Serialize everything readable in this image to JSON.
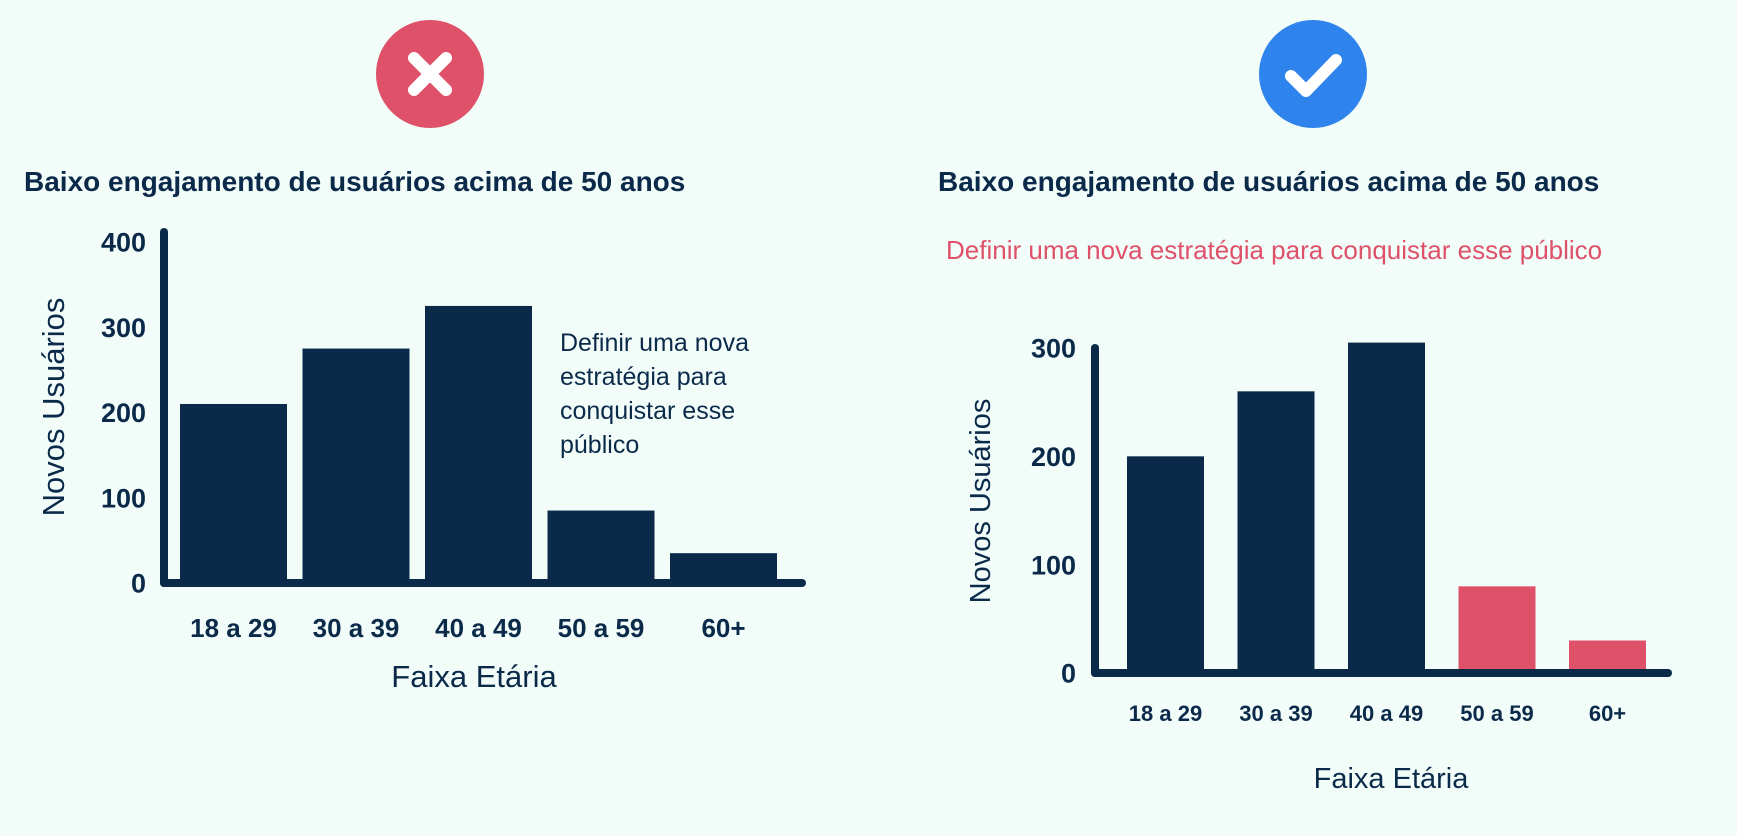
{
  "colors": {
    "background": "#f2fdfa",
    "navy": "#0b2a4a",
    "accent": "#de5169",
    "bad_badge": "#de5169",
    "good_badge": "#2e84ec"
  },
  "left": {
    "badge_icon": "x-icon",
    "title": "Baixo engajamento de usuários acima de 50 anos",
    "note_lines": [
      "Definir uma nova",
      "estratégia para",
      "conquistar esse",
      "público"
    ]
  },
  "right": {
    "badge_icon": "check-icon",
    "title": "Baixo engajamento de usuários acima de 50 anos",
    "subtitle": "Definir uma nova estratégia para conquistar esse público"
  },
  "chart_data": [
    {
      "type": "bar",
      "categories": [
        "18 a 29",
        "30 a 39",
        "40 a 49",
        "50 a 59",
        "60+"
      ],
      "values": [
        210,
        275,
        325,
        85,
        35
      ],
      "ylabel": "Novos Usuários",
      "xlabel": "Faixa Etária",
      "ylim": [
        0,
        400
      ],
      "yticks": [
        "0",
        "100",
        "200",
        "300",
        "400"
      ],
      "bar_colors": [
        "#0b2a4a",
        "#0b2a4a",
        "#0b2a4a",
        "#0b2a4a",
        "#0b2a4a"
      ],
      "grid": false
    },
    {
      "type": "bar",
      "categories": [
        "18 a 29",
        "30 a 39",
        "40 a 49",
        "50 a 59",
        "60+"
      ],
      "values": [
        200,
        260,
        305,
        80,
        30
      ],
      "ylabel": "Novos Usuários",
      "xlabel": "Faixa Etária",
      "ylim": [
        0,
        300
      ],
      "yticks": [
        "0",
        "100",
        "200",
        "300"
      ],
      "bar_colors": [
        "#0b2a4a",
        "#0b2a4a",
        "#0b2a4a",
        "#de5169",
        "#de5169"
      ],
      "grid": false
    }
  ]
}
